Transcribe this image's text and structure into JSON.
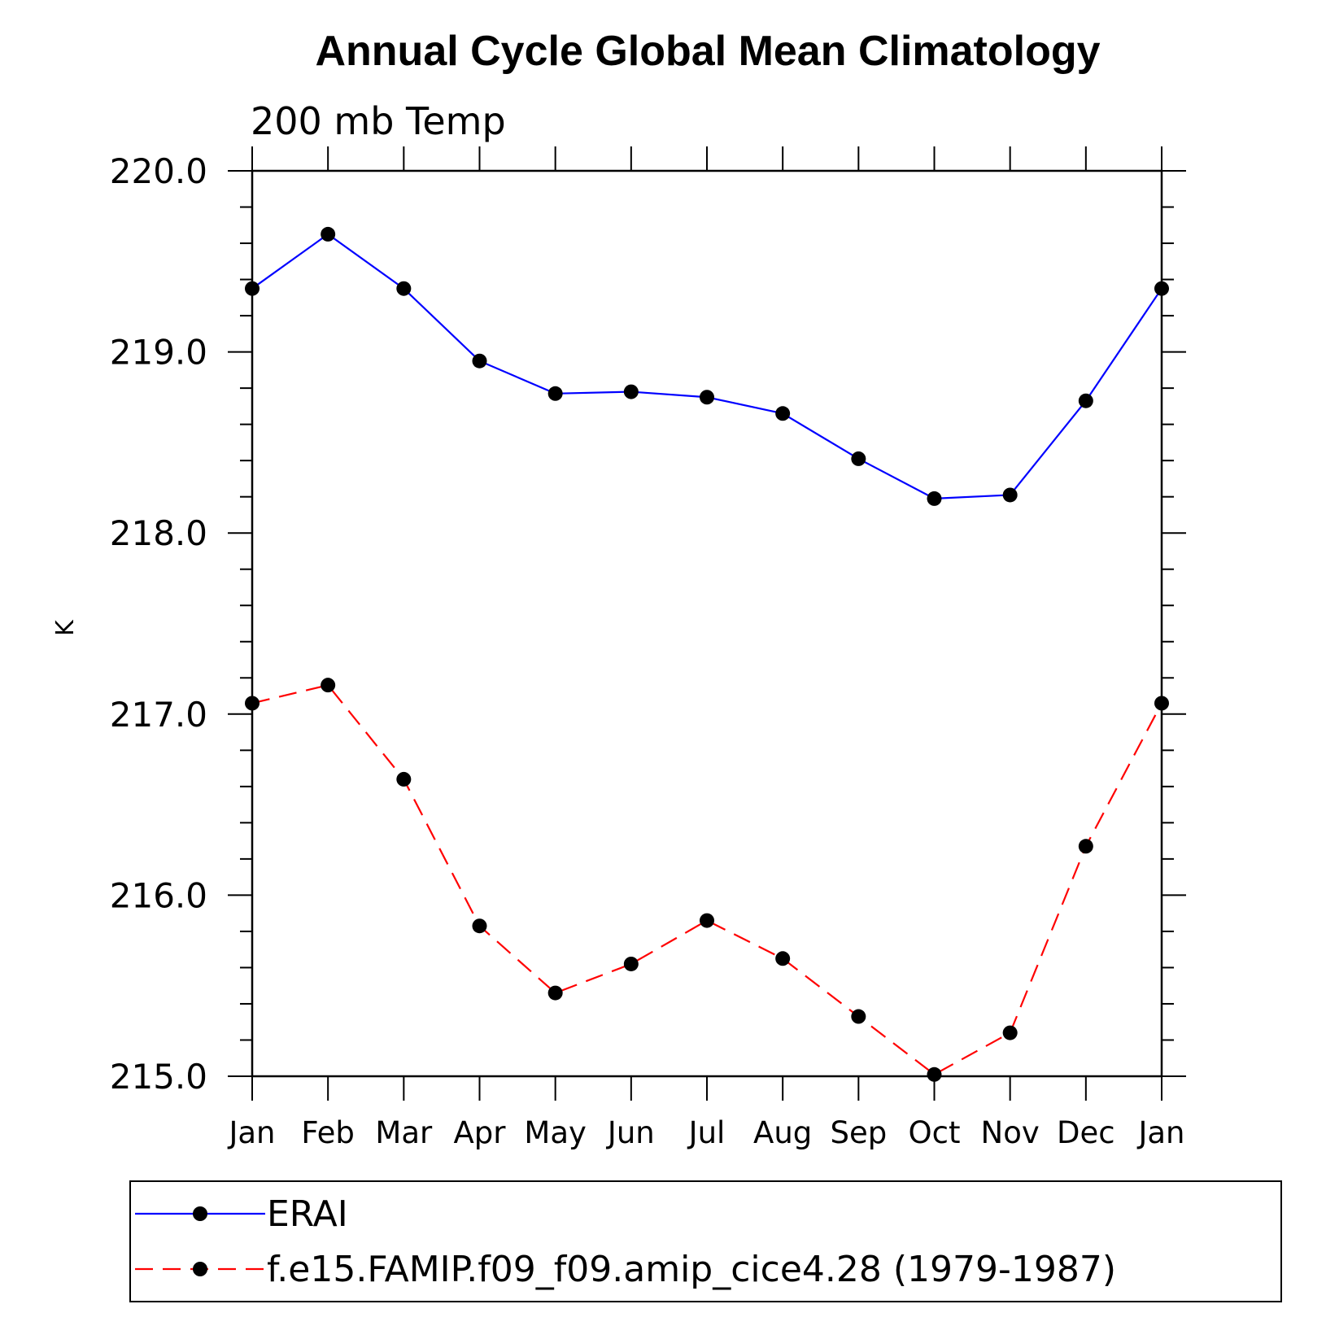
{
  "chart_data": {
    "type": "line",
    "title": "Annual Cycle Global Mean Climatology",
    "subtitle": "200 mb Temp",
    "ylabel": "K",
    "xlabel": "",
    "categories": [
      "Jan",
      "Feb",
      "Mar",
      "Apr",
      "May",
      "Jun",
      "Jul",
      "Aug",
      "Sep",
      "Oct",
      "Nov",
      "Dec",
      "Jan"
    ],
    "ylim": [
      215.0,
      220.0
    ],
    "yticks": [
      "215.0",
      "216.0",
      "217.0",
      "218.0",
      "219.0",
      "220.0"
    ],
    "grid": false,
    "legend_position": "bottom",
    "series": [
      {
        "name": "ERAI",
        "color": "#0000ff",
        "line_style": "solid",
        "marker": "filled-circle",
        "values": [
          219.35,
          219.65,
          219.35,
          218.95,
          218.77,
          218.78,
          218.75,
          218.66,
          218.41,
          218.19,
          218.21,
          218.73,
          219.35
        ]
      },
      {
        "name": "f.e15.FAMIP.f09_f09.amip_cice4.28 (1979-1987)",
        "color": "#ff0000",
        "line_style": "dashed",
        "marker": "filled-circle",
        "values": [
          217.06,
          217.16,
          216.64,
          215.83,
          215.46,
          215.62,
          215.86,
          215.65,
          215.33,
          215.01,
          215.24,
          216.27,
          217.06
        ]
      }
    ]
  }
}
